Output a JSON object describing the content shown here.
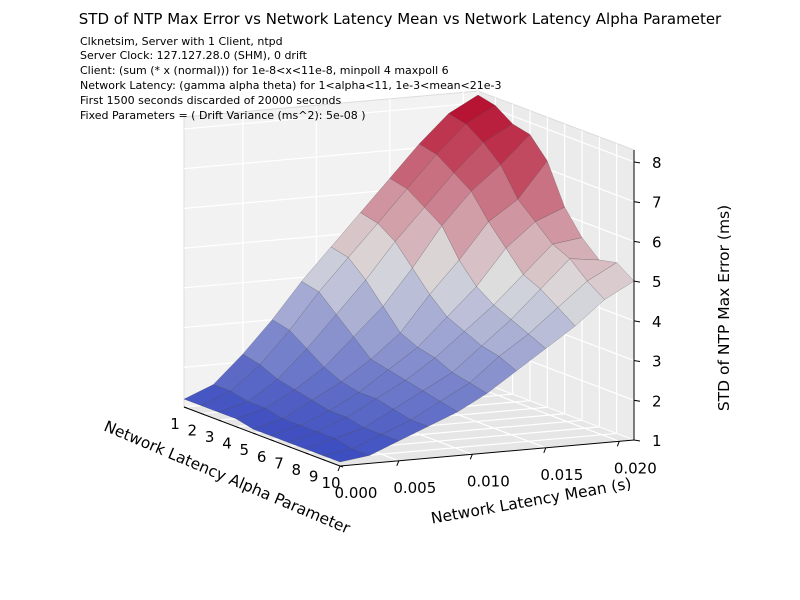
{
  "chart_data": {
    "type": "surface3d",
    "title": "STD of NTP Max Error vs Network Latency Mean vs Network Latency Alpha Parameter",
    "annotations": [
      "Clknetsim, Server with 1 Client, ntpd",
      "Server Clock: 127.127.28.0 (SHM), 0 drift",
      "Client: (sum (* x (normal))) for 1e-8<x<11e-8, minpoll 4 maxpoll 6",
      "Network Latency: (gamma alpha theta) for 1<alpha<11, 1e-3<mean<21e-3",
      "First 1500 seconds discarded of 20000 seconds",
      "Fixed Parameters = ( Drift Variance (ms^2): 5e-08 )"
    ],
    "xlabel": "Network Latency Alpha Parameter",
    "ylabel": "Network Latency Mean (s)",
    "zlabel": "STD of NTP Max Error (ms)",
    "xticks": [
      "1",
      "2",
      "3",
      "4",
      "5",
      "6",
      "7",
      "8",
      "9",
      "10"
    ],
    "yticks": [
      "0.000",
      "0.005",
      "0.010",
      "0.015",
      "0.020"
    ],
    "zticks": [
      "1",
      "2",
      "3",
      "4",
      "5",
      "6",
      "7",
      "8"
    ],
    "xlim": [
      1,
      10
    ],
    "ylim": [
      0.001,
      0.021
    ],
    "zlim": [
      1,
      8.3
    ],
    "colormap": "coolwarm",
    "cmap_low": "#3b4cc0",
    "cmap_mid": "#dddddd",
    "cmap_high": "#b40426",
    "alpha": [
      1,
      2,
      3,
      4,
      5,
      6,
      7,
      8,
      9,
      10
    ],
    "mean": [
      0.001,
      0.003,
      0.005,
      0.007,
      0.009,
      0.011,
      0.013,
      0.015,
      0.017,
      0.019,
      0.021
    ],
    "z": [
      [
        1.2,
        1.5,
        2.2,
        3.0,
        3.9,
        4.7,
        5.5,
        6.3,
        7.1,
        7.8,
        8.2
      ],
      [
        1.2,
        1.5,
        2.1,
        2.9,
        3.8,
        4.6,
        5.4,
        6.2,
        7.0,
        7.7,
        8.1
      ],
      [
        1.2,
        1.4,
        1.9,
        2.6,
        3.4,
        4.2,
        5.1,
        5.9,
        6.7,
        7.4,
        7.8
      ],
      [
        1.2,
        1.4,
        1.8,
        2.3,
        3.0,
        3.7,
        4.6,
        5.6,
        6.4,
        7.0,
        7.7
      ],
      [
        1.1,
        1.3,
        1.7,
        2.1,
        2.6,
        3.2,
        4.1,
        4.9,
        5.8,
        6.3,
        7.2
      ],
      [
        1.1,
        1.3,
        1.6,
        2.0,
        2.5,
        3.0,
        3.7,
        4.4,
        5.3,
        5.9,
        6.2
      ],
      [
        1.1,
        1.3,
        1.6,
        2.0,
        2.4,
        2.9,
        3.5,
        4.1,
        4.8,
        5.5,
        5.6
      ],
      [
        1.1,
        1.3,
        1.5,
        1.9,
        2.3,
        2.7,
        3.3,
        3.9,
        4.6,
        5.3,
        5.2
      ],
      [
        1.1,
        1.2,
        1.5,
        1.8,
        2.2,
        2.6,
        3.2,
        3.7,
        4.3,
        4.9,
        5.3
      ],
      [
        1.1,
        1.2,
        1.5,
        1.8,
        2.1,
        2.5,
        3.0,
        3.5,
        4.0,
        4.6,
        5.0
      ]
    ]
  }
}
